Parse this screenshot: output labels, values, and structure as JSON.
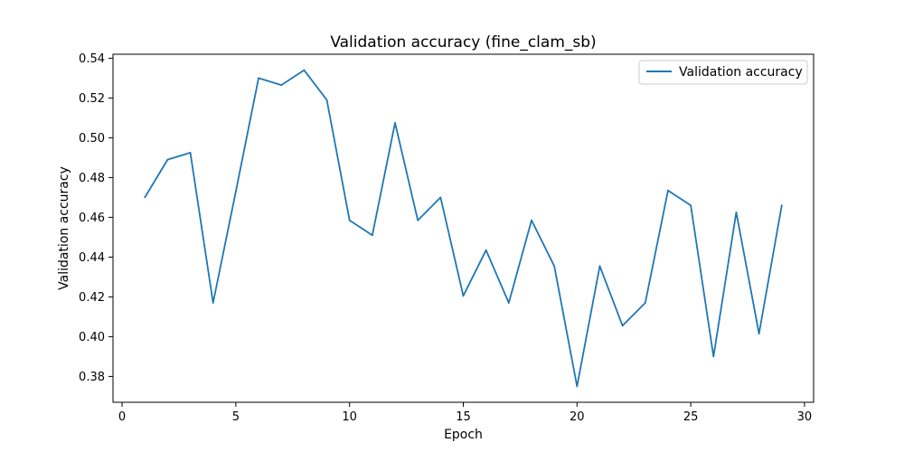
{
  "chart_data": {
    "type": "line",
    "title": "Validation accuracy (fine_clam_sb)",
    "xlabel": "Epoch",
    "ylabel": "Validation accuracy",
    "xlim": [
      -0.4,
      30.4
    ],
    "ylim": [
      0.367,
      0.542
    ],
    "xticks": [
      0,
      5,
      10,
      15,
      20,
      25,
      30
    ],
    "xtick_labels": [
      "0",
      "5",
      "10",
      "15",
      "20",
      "25",
      "30"
    ],
    "yticks": [
      0.38,
      0.4,
      0.42,
      0.44,
      0.46,
      0.48,
      0.5,
      0.52,
      0.54
    ],
    "ytick_labels": [
      "0.38",
      "0.40",
      "0.42",
      "0.44",
      "0.46",
      "0.48",
      "0.50",
      "0.52",
      "0.54"
    ],
    "grid": false,
    "legend_placement": "top-right",
    "series": [
      {
        "name": "Validation accuracy",
        "color": "#1f77b4",
        "x": [
          1,
          2,
          3,
          4,
          5,
          6,
          7,
          8,
          9,
          10,
          11,
          12,
          13,
          14,
          15,
          16,
          17,
          18,
          19,
          20,
          21,
          22,
          23,
          24,
          25,
          26,
          27,
          28,
          29
        ],
        "y": [
          0.47,
          0.489,
          0.4925,
          0.417,
          0.473,
          0.53,
          0.5265,
          0.534,
          0.519,
          0.4585,
          0.451,
          0.5075,
          0.4585,
          0.47,
          0.4205,
          0.4435,
          0.417,
          0.4585,
          0.4355,
          0.375,
          0.4355,
          0.4055,
          0.417,
          0.4735,
          0.466,
          0.39,
          0.4625,
          0.4015,
          0.466
        ]
      }
    ]
  }
}
